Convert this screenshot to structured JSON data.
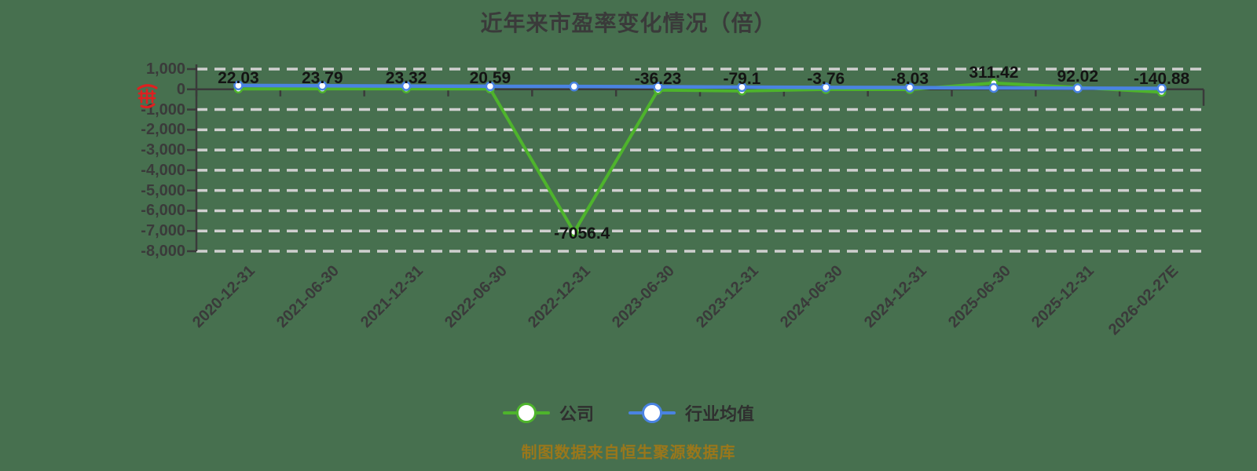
{
  "title": "近年来市盈率变化情况（倍）",
  "footer": "制图数据来自恒生聚源数据库",
  "colors": {
    "background": "#47704F",
    "company": "#4EB42C",
    "industry": "#4A83E2",
    "grid": "#CFCFCF",
    "axis": "#3A3A3A",
    "data_label": "#141414",
    "tick_label": "#3A3A3A",
    "footer_text": "#9A771B",
    "stamp": "#DD2020"
  },
  "stamp_icon": {
    "name": "red-stamp-icon",
    "color": "#DD2020"
  },
  "chart_data": {
    "type": "line",
    "title": "近年来市盈率变化情况（倍）",
    "categories": [
      "2020-12-31",
      "2021-06-30",
      "2021-12-31",
      "2022-06-30",
      "2022-12-31",
      "2023-06-30",
      "2023-12-31",
      "2024-06-30",
      "2024-12-31",
      "2025-06-30",
      "2025-12-31",
      "2026-02-27E"
    ],
    "series": [
      {
        "name": "公司",
        "color": "#4EB42C",
        "values": [
          22.03,
          23.79,
          23.32,
          20.59,
          -7056.4,
          -36.23,
          -79.1,
          -3.76,
          -8.03,
          311.42,
          92.02,
          -140.88
        ],
        "labels": [
          "22.03",
          "23.79",
          "23.32",
          "20.59",
          "-7056.4",
          "-36.23",
          "-79.1",
          "-3.76",
          "-8.03",
          "311.42",
          "92.02",
          "-140.88"
        ]
      },
      {
        "name": "行业均值",
        "color": "#4A83E2",
        "estimated": true,
        "note": "values not labeled in chart; line hugs the zero axis, gently declining left to right",
        "values": [
          190,
          175,
          160,
          150,
          140,
          125,
          110,
          95,
          85,
          70,
          55,
          45
        ]
      }
    ],
    "ylim": [
      -8000,
      1000
    ],
    "y_ticks": [
      1000,
      0,
      -1000,
      -2000,
      -3000,
      -4000,
      -5000,
      -6000,
      -7000,
      -8000
    ],
    "y_tick_labels": [
      "1,000",
      "0",
      "-1,000",
      "-2,000",
      "-3,000",
      "-4,000",
      "-5,000",
      "-6,000",
      "-7,000",
      "-8,000"
    ],
    "x_label_rotation_deg": 45,
    "grid": "horizontal-dashed",
    "legend_position": "bottom"
  }
}
